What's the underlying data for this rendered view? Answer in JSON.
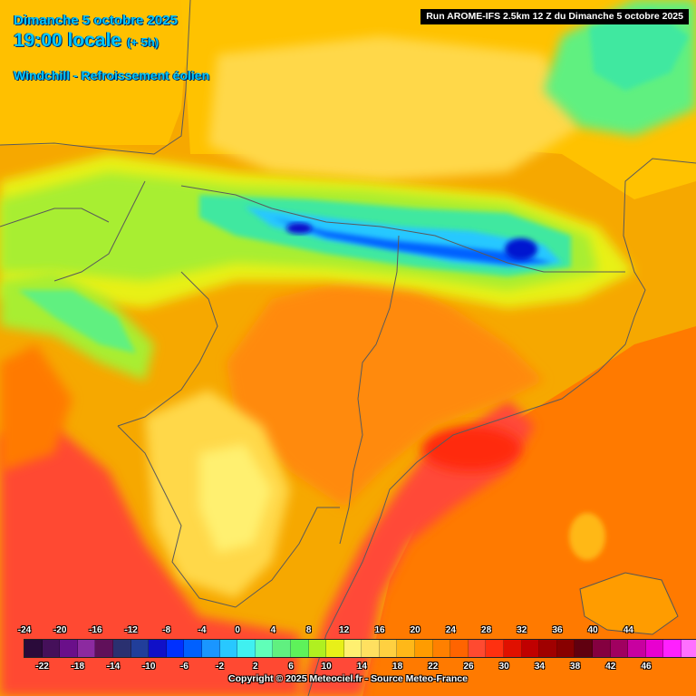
{
  "header": {
    "date": "Dimanche 5 octobre 2025",
    "time": "19:00 locale",
    "lead": "(+ 5h)",
    "parameter": "Windchill - Refroissement éolien",
    "run": "Run AROME-IFS 2.5km 12 Z du Dimanche 5 octobre 2025"
  },
  "map": {
    "region": "Pyrénées / nord-est de l'Espagne",
    "dominant_colors": {
      "sea": "#ff7a00",
      "warm_coast": "#ff4a38",
      "plains": "#ffc000",
      "hills": "#ffe050",
      "mountains_low": "#aaf040",
      "mountains_mid": "#40e8a0",
      "mountains_high": "#2b6bff",
      "peaks": "#0018d0"
    }
  },
  "legend": {
    "colors": [
      "#2a0a3a",
      "#45105a",
      "#6a0f8a",
      "#8c2aa0",
      "#60105a",
      "#2a3070",
      "#213e9a",
      "#1010c8",
      "#0030ff",
      "#0060ff",
      "#1a96ff",
      "#28c8ff",
      "#40f0f0",
      "#60ffb8",
      "#60f080",
      "#5ef25a",
      "#b0f020",
      "#e8f018",
      "#fff070",
      "#ffe060",
      "#ffd040",
      "#ffb818",
      "#ff9c00",
      "#ff8000",
      "#ff6400",
      "#ff4a30",
      "#ff3010",
      "#e01000",
      "#c00000",
      "#a00000",
      "#880000",
      "#600010",
      "#840040",
      "#a00060",
      "#c800a0",
      "#e800d0",
      "#ff20ff",
      "#ff70ff",
      "#ff90f0"
    ],
    "labels_top": [
      "-24",
      "-20",
      "-16",
      "-12",
      "-8",
      "-4",
      "0",
      "4",
      "8",
      "12",
      "16",
      "20",
      "24",
      "28",
      "32",
      "36",
      "40",
      "44"
    ],
    "labels_bottom": [
      "-22",
      "-18",
      "-14",
      "-10",
      "-6",
      "-2",
      "2",
      "6",
      "10",
      "14",
      "18",
      "22",
      "26",
      "30",
      "34",
      "38",
      "42",
      "46"
    ]
  },
  "footer": {
    "copyright": "Copyright © 2025 Meteociel.fr - Source Meteo-France"
  }
}
